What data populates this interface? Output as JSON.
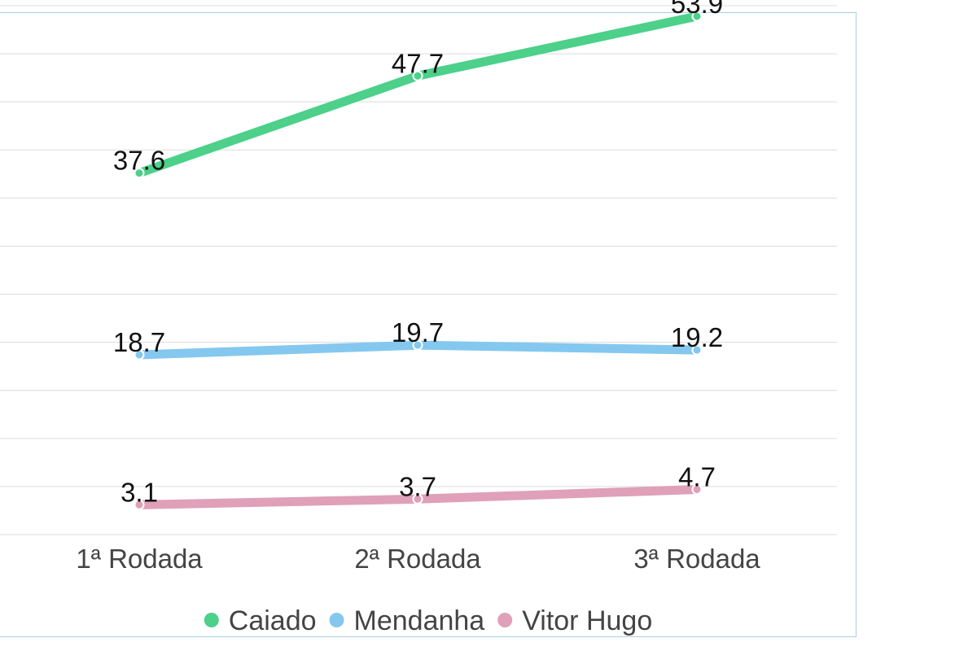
{
  "chart_data": {
    "type": "line",
    "categories": [
      "1ª Rodada",
      "2ª Rodada",
      "3ª Rodada"
    ],
    "series": [
      {
        "name": "Caiado",
        "color": "#4cd08a",
        "values": [
          37.6,
          47.7,
          53.9
        ]
      },
      {
        "name": "Mendanha",
        "color": "#84c8ef",
        "values": [
          18.7,
          19.7,
          19.2
        ]
      },
      {
        "name": "Vitor Hugo",
        "color": "#dfa0b8",
        "values": [
          3.1,
          3.7,
          4.7
        ]
      }
    ],
    "ylim": [
      0,
      55
    ],
    "grid": true,
    "legend_position": "bottom"
  }
}
